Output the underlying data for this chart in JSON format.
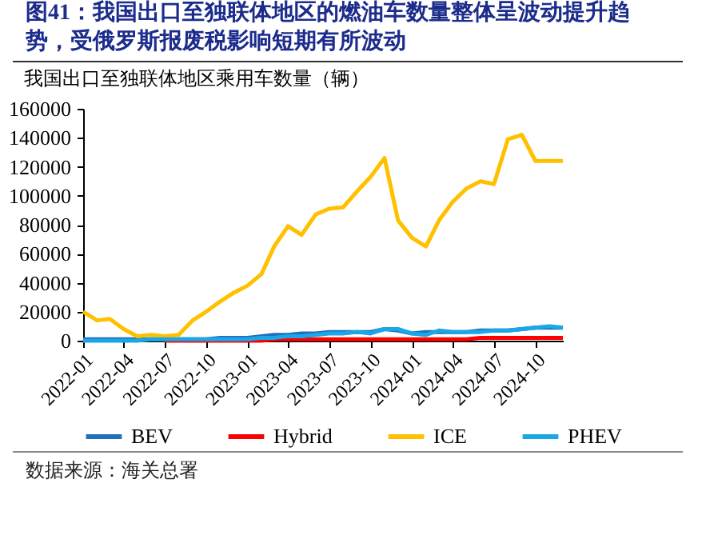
{
  "chart_data": {
    "type": "line",
    "title": "图41：我国出口至独联体地区的燃油车数量整体呈波动提升趋势，受俄罗斯报废税影响短期有所波动",
    "subtitle": "我国出口至独联体地区乘用车数量（辆）",
    "annotations": [
      "数据来源：海关总署"
    ],
    "x": [
      "2022-01",
      "2022-02",
      "2022-03",
      "2022-04",
      "2022-05",
      "2022-06",
      "2022-07",
      "2022-08",
      "2022-09",
      "2022-10",
      "2022-11",
      "2022-12",
      "2023-01",
      "2023-02",
      "2023-03",
      "2023-04",
      "2023-05",
      "2023-06",
      "2023-07",
      "2023-08",
      "2023-09",
      "2023-10",
      "2023-11",
      "2023-12",
      "2024-01",
      "2024-02",
      "2024-03",
      "2024-04",
      "2024-05",
      "2024-06",
      "2024-07",
      "2024-08",
      "2024-09",
      "2024-10",
      "2024-11",
      "2024-12"
    ],
    "series": [
      {
        "name": "BEV",
        "color": "#1f6fbf",
        "values": [
          1000,
          1000,
          1000,
          1000,
          1000,
          1000,
          1000,
          1000,
          1000,
          1000,
          2000,
          2000,
          2000,
          3000,
          4000,
          4000,
          5000,
          5000,
          6000,
          6000,
          6000,
          6000,
          8000,
          7000,
          5000,
          6000,
          6000,
          6000,
          6000,
          7000,
          7000,
          7000,
          8000,
          9000,
          9000,
          9000
        ]
      },
      {
        "name": "Hybrid",
        "color": "#ff0000",
        "values": [
          null,
          null,
          null,
          null,
          null,
          null,
          0,
          0,
          0,
          0,
          0,
          0,
          0,
          0,
          1000,
          1000,
          1000,
          1000,
          1000,
          1000,
          1000,
          1000,
          1000,
          1000,
          1000,
          1000,
          1000,
          1000,
          1000,
          2000,
          2000,
          2000,
          2000,
          2000,
          2000,
          2000
        ]
      },
      {
        "name": "ICE",
        "color": "#ffc000",
        "values": [
          20000,
          14000,
          15000,
          8000,
          3000,
          4000,
          3000,
          4000,
          14000,
          20000,
          27000,
          33000,
          38000,
          46000,
          65000,
          79000,
          73000,
          87000,
          91000,
          92000,
          103000,
          113000,
          126000,
          83000,
          71000,
          65000,
          83000,
          96000,
          105000,
          110000,
          108000,
          139000,
          142000,
          124000,
          124000,
          124000
        ]
      },
      {
        "name": "PHEV",
        "color": "#1aa7e8",
        "values": [
          0,
          0,
          0,
          0,
          0,
          1000,
          1000,
          1000,
          1000,
          1000,
          1000,
          1000,
          1000,
          2000,
          2000,
          3000,
          3000,
          4000,
          5000,
          5000,
          6000,
          5000,
          8000,
          8000,
          5000,
          4000,
          7000,
          6000,
          6000,
          6000,
          7000,
          7000,
          8000,
          9000,
          10000,
          9000
        ]
      }
    ],
    "xlim": [
      "2022-01",
      "2024-12"
    ],
    "xticks": [
      "2022-01",
      "2022-04",
      "2022-07",
      "2022-10",
      "2023-01",
      "2023-04",
      "2023-07",
      "2023-10",
      "2024-01",
      "2024-04",
      "2024-07",
      "2024-10"
    ],
    "ylim": [
      0,
      160000
    ],
    "yticks": [
      0,
      20000,
      40000,
      60000,
      80000,
      100000,
      120000,
      140000,
      160000
    ],
    "legend": "bottom",
    "grid": false,
    "marker": "none",
    "line_style": "solid"
  }
}
